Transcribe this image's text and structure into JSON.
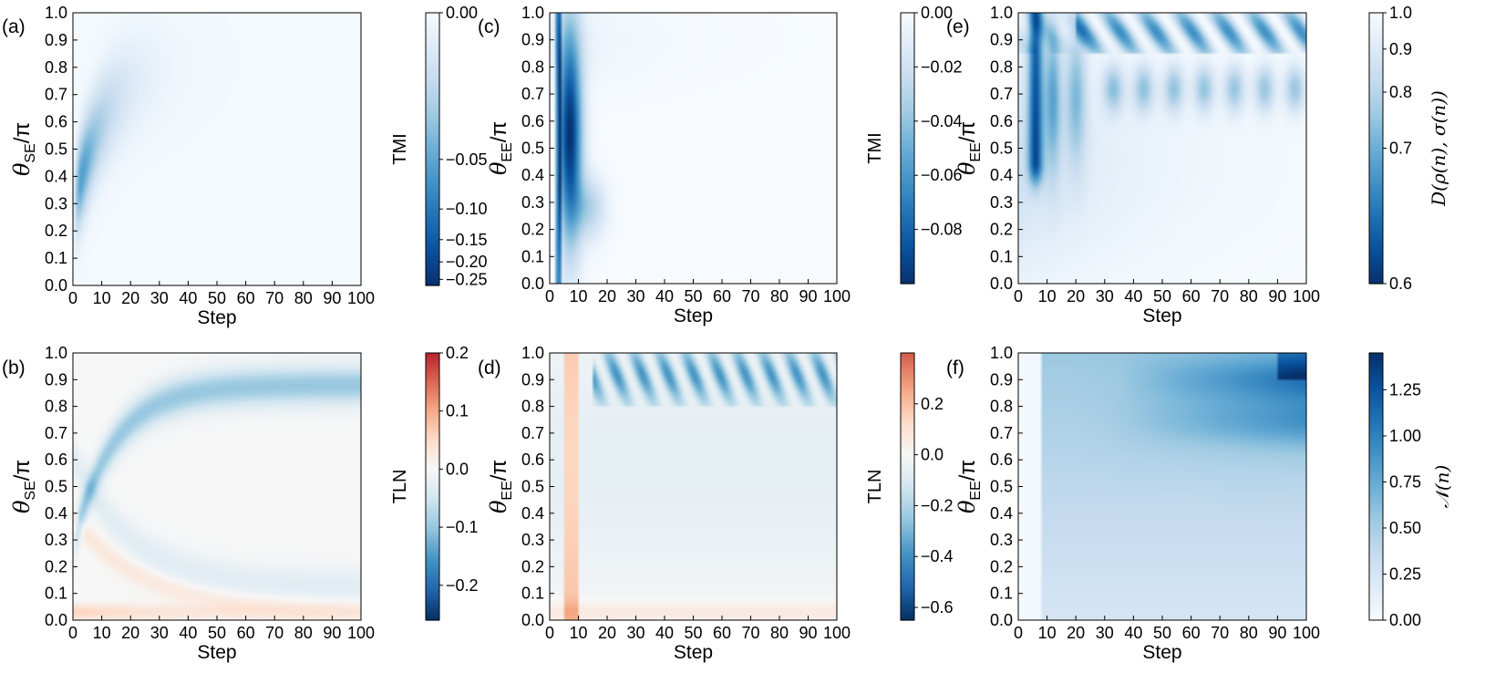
{
  "figure": {
    "x_axis_label": "Step",
    "x_ticks": [
      "0",
      "10",
      "20",
      "30",
      "40",
      "50",
      "60",
      "70",
      "80",
      "90",
      "100"
    ],
    "y_ticks": [
      "0.0",
      "0.1",
      "0.2",
      "0.3",
      "0.4",
      "0.5",
      "0.6",
      "0.7",
      "0.8",
      "0.9",
      "1.0"
    ]
  },
  "chart_data": [
    {
      "type": "heatmap",
      "panel": "(a)",
      "xlabel": "Step",
      "ylabel": {
        "main": "θ",
        "sub": "SE",
        "suffix": "/π"
      },
      "xlim": [
        0,
        100
      ],
      "ylim": [
        0.0,
        1.0
      ],
      "colorbar": {
        "label": "TMI",
        "range": [
          -0.27,
          0.0
        ],
        "ticks": [
          "0.00",
          "−0.05",
          "−0.10",
          "−0.15",
          "−0.20",
          "−0.25"
        ],
        "tick_values": [
          0.0,
          -0.05,
          -0.1,
          -0.15,
          -0.2,
          -0.25
        ],
        "scale": "symlog"
      },
      "colormap": "Blues_r",
      "description_values": {
        "min": -0.27,
        "max": 0.0
      }
    },
    {
      "type": "heatmap",
      "panel": "(b)",
      "xlabel": "Step",
      "ylabel": {
        "main": "θ",
        "sub": "SE",
        "suffix": "/π"
      },
      "xlim": [
        0,
        100
      ],
      "ylim": [
        0.0,
        1.0
      ],
      "colorbar": {
        "label": "TLN",
        "range": [
          -0.26,
          0.2
        ],
        "ticks": [
          "0.2",
          "0.1",
          "0.0",
          "−0.1",
          "−0.2"
        ],
        "tick_values": [
          0.2,
          0.1,
          0.0,
          -0.1,
          -0.2
        ],
        "scale": "linear"
      },
      "colormap": "RdBu_r"
    },
    {
      "type": "heatmap",
      "panel": "(c)",
      "xlabel": "Step",
      "ylabel": {
        "main": "θ",
        "sub": "EE",
        "suffix": "/π"
      },
      "xlim": [
        0,
        100
      ],
      "ylim": [
        0.0,
        1.0
      ],
      "colorbar": {
        "label": "TMI",
        "range": [
          -0.1,
          0.0
        ],
        "ticks": [
          "0.00",
          "−0.02",
          "−0.04",
          "−0.06",
          "−0.08"
        ],
        "tick_values": [
          0.0,
          -0.02,
          -0.04,
          -0.06,
          -0.08
        ],
        "scale": "linear"
      },
      "colormap": "Blues_r"
    },
    {
      "type": "heatmap",
      "panel": "(d)",
      "xlabel": "Step",
      "ylabel": {
        "main": "θ",
        "sub": "EE",
        "suffix": "/π"
      },
      "xlim": [
        0,
        100
      ],
      "ylim": [
        0.0,
        1.0
      ],
      "colorbar": {
        "label": "TLN",
        "range": [
          -0.65,
          0.4
        ],
        "ticks": [
          "0.2",
          "0.0",
          "−0.2",
          "−0.4",
          "−0.6"
        ],
        "tick_values": [
          0.2,
          0.0,
          -0.2,
          -0.4,
          -0.6
        ],
        "scale": "linear"
      },
      "colormap": "RdBu_r"
    },
    {
      "type": "heatmap",
      "panel": "(e)",
      "xlabel": "Step",
      "ylabel": {
        "main": "θ",
        "sub": "EE",
        "suffix": "/π"
      },
      "xlim": [
        0,
        100
      ],
      "ylim": [
        0.0,
        1.0
      ],
      "colorbar": {
        "label": "D(ρ(n), σ(n))",
        "range": [
          0.6,
          1.0
        ],
        "ticks": [
          "1.0",
          "0.9",
          "0.8",
          "0.7",
          "0.6"
        ],
        "tick_values": [
          1.0,
          0.9,
          0.8,
          0.7,
          0.6
        ],
        "scale": "power"
      },
      "colormap": "Blues_r"
    },
    {
      "type": "heatmap",
      "panel": "(f)",
      "xlabel": "Step",
      "ylabel": {
        "main": "θ",
        "sub": "EE",
        "suffix": "/π"
      },
      "xlim": [
        0,
        100
      ],
      "ylim": [
        0.0,
        1.0
      ],
      "colorbar": {
        "label": "𝒩(n)",
        "range": [
          0.0,
          1.45
        ],
        "ticks": [
          "1.25",
          "1.00",
          "0.75",
          "0.50",
          "0.25",
          "0.00"
        ],
        "tick_values": [
          1.25,
          1.0,
          0.75,
          0.5,
          0.25,
          0.0
        ],
        "scale": "linear"
      },
      "colormap": "Blues"
    }
  ]
}
